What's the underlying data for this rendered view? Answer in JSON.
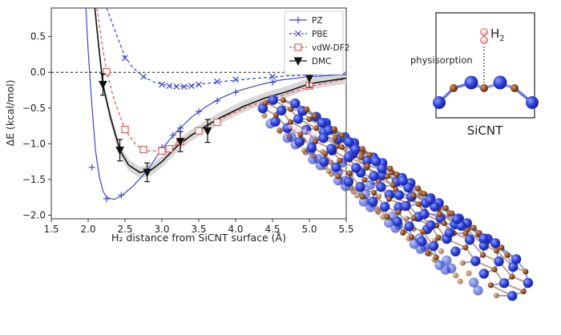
{
  "chart_data": {
    "type": "line",
    "title": "",
    "xlabel": "H₂ distance from SiCNT surface (Å)",
    "ylabel": "ΔE (kcal/mol)",
    "xlim": [
      1.5,
      5.5
    ],
    "ylim": [
      -2.05,
      0.9
    ],
    "x_ticks": [
      1.5,
      2.0,
      2.5,
      3.0,
      3.5,
      4.0,
      4.5,
      5.0,
      5.5
    ],
    "x_tick_labels": [
      "1.5",
      "2.0",
      "2.5",
      "3.0",
      "3.5",
      "4.0",
      "4.5",
      "5.0",
      "5.5"
    ],
    "y_ticks": [
      0.5,
      0.0,
      -0.5,
      -1.0,
      -1.5,
      -2.0
    ],
    "y_tick_labels": [
      "0.5",
      "0.0",
      "−0.5",
      "−1.0",
      "−1.5",
      "−2.0"
    ],
    "reference_line": 0.0,
    "legend_position": "top-right",
    "series": [
      {
        "name": "PZ",
        "color": "#3b45cc",
        "marker": "plus",
        "line": "solid",
        "points": [
          [
            2.05,
            -1.33
          ],
          [
            2.25,
            -1.77
          ],
          [
            2.45,
            -1.72
          ],
          [
            2.8,
            -1.38
          ],
          [
            3.0,
            -1.05
          ],
          [
            3.15,
            -0.88
          ],
          [
            3.25,
            -0.78
          ],
          [
            3.5,
            -0.55
          ],
          [
            3.75,
            -0.4
          ],
          [
            4.0,
            -0.28
          ],
          [
            4.5,
            -0.14
          ],
          [
            5.0,
            -0.06
          ]
        ],
        "curve": [
          [
            1.97,
            0.9
          ],
          [
            2.0,
            0.3
          ],
          [
            2.05,
            -0.45
          ],
          [
            2.1,
            -1.1
          ],
          [
            2.15,
            -1.45
          ],
          [
            2.2,
            -1.66
          ],
          [
            2.25,
            -1.75
          ],
          [
            2.35,
            -1.78
          ],
          [
            2.45,
            -1.73
          ],
          [
            2.6,
            -1.6
          ],
          [
            2.8,
            -1.38
          ],
          [
            3.0,
            -1.07
          ],
          [
            3.2,
            -0.83
          ],
          [
            3.4,
            -0.63
          ],
          [
            3.6,
            -0.48
          ],
          [
            3.8,
            -0.36
          ],
          [
            4.0,
            -0.27
          ],
          [
            4.3,
            -0.18
          ],
          [
            4.6,
            -0.11
          ],
          [
            5.0,
            -0.06
          ],
          [
            5.5,
            -0.03
          ]
        ]
      },
      {
        "name": "PBE",
        "color": "#3b45cc",
        "marker": "x",
        "line": "dashed",
        "points": [
          [
            2.5,
            0.2
          ],
          [
            2.75,
            -0.06
          ],
          [
            3.0,
            -0.17
          ],
          [
            3.1,
            -0.19
          ],
          [
            3.2,
            -0.2
          ],
          [
            3.3,
            -0.2
          ],
          [
            3.4,
            -0.19
          ],
          [
            3.5,
            -0.17
          ],
          [
            3.75,
            -0.13
          ],
          [
            4.0,
            -0.1
          ],
          [
            4.5,
            -0.06
          ],
          [
            5.0,
            -0.03
          ]
        ],
        "curve": [
          [
            2.25,
            0.9
          ],
          [
            2.4,
            0.48
          ],
          [
            2.5,
            0.22
          ],
          [
            2.6,
            0.07
          ],
          [
            2.75,
            -0.06
          ],
          [
            2.9,
            -0.14
          ],
          [
            3.1,
            -0.19
          ],
          [
            3.3,
            -0.2
          ],
          [
            3.5,
            -0.17
          ],
          [
            3.8,
            -0.13
          ],
          [
            4.2,
            -0.09
          ],
          [
            4.7,
            -0.05
          ],
          [
            5.5,
            -0.02
          ]
        ]
      },
      {
        "name": "vdW-DF2",
        "color": "#e05050",
        "marker": "square",
        "line": "dashed",
        "points": [
          [
            2.25,
            0.01
          ],
          [
            2.5,
            -0.8
          ],
          [
            2.75,
            -1.08
          ],
          [
            3.0,
            -1.1
          ],
          [
            3.1,
            -1.07
          ],
          [
            3.25,
            -0.97
          ],
          [
            3.5,
            -0.82
          ],
          [
            3.75,
            -0.7
          ],
          [
            4.5,
            -0.37
          ],
          [
            5.0,
            -0.19
          ]
        ],
        "curve": [
          [
            2.12,
            0.9
          ],
          [
            2.18,
            0.45
          ],
          [
            2.25,
            0.02
          ],
          [
            2.35,
            -0.38
          ],
          [
            2.5,
            -0.8
          ],
          [
            2.65,
            -1.02
          ],
          [
            2.8,
            -1.1
          ],
          [
            3.0,
            -1.1
          ],
          [
            3.2,
            -1.01
          ],
          [
            3.4,
            -0.88
          ],
          [
            3.6,
            -0.76
          ],
          [
            3.9,
            -0.6
          ],
          [
            4.2,
            -0.47
          ],
          [
            4.5,
            -0.37
          ],
          [
            5.0,
            -0.2
          ],
          [
            5.5,
            -0.09
          ]
        ]
      },
      {
        "name": "DMC",
        "color": "#111111",
        "marker": "triangle-down",
        "line": "solid",
        "points": [
          [
            2.2,
            -0.17
          ],
          [
            2.43,
            -1.09
          ],
          [
            2.8,
            -1.4
          ],
          [
            3.25,
            -0.97
          ],
          [
            3.62,
            -0.82
          ],
          [
            5.0,
            -0.08
          ]
        ],
        "errors": [
          0.15,
          0.15,
          0.13,
          0.14,
          0.16,
          0.13
        ],
        "curve": [
          [
            2.09,
            0.9
          ],
          [
            2.15,
            0.3
          ],
          [
            2.2,
            -0.17
          ],
          [
            2.3,
            -0.62
          ],
          [
            2.43,
            -1.09
          ],
          [
            2.55,
            -1.3
          ],
          [
            2.7,
            -1.4
          ],
          [
            2.85,
            -1.37
          ],
          [
            3.0,
            -1.25
          ],
          [
            3.2,
            -1.04
          ],
          [
            3.4,
            -0.88
          ],
          [
            3.6,
            -0.75
          ],
          [
            3.8,
            -0.63
          ],
          [
            4.1,
            -0.48
          ],
          [
            4.4,
            -0.36
          ],
          [
            4.7,
            -0.27
          ],
          [
            5.0,
            -0.16
          ],
          [
            5.5,
            -0.08
          ]
        ],
        "band_width": 0.16
      }
    ]
  },
  "inset": {
    "molecule_label": "H",
    "molecule_subscript": "2",
    "interaction_label": "physisorption",
    "system_label": "SiCNT"
  },
  "colors": {
    "silicon": "#2c3fd8",
    "carbon": "#8a4a1e",
    "hydrogen": "#f2b6b6",
    "band": "#d8d8d8"
  }
}
